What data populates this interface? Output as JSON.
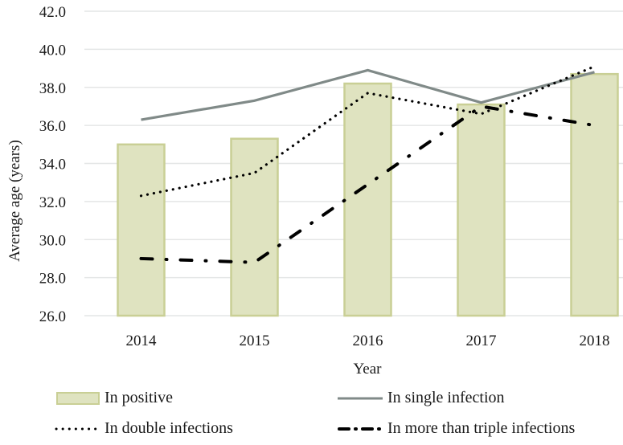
{
  "chart_data": {
    "type": "bar+line",
    "title": "",
    "xlabel": "Year",
    "ylabel": "Average age (years)",
    "categories": [
      "2014",
      "2015",
      "2016",
      "2017",
      "2018"
    ],
    "ylim": [
      26.0,
      42.0
    ],
    "yticks": [
      "26.0",
      "28.0",
      "30.0",
      "32.0",
      "34.0",
      "36.0",
      "38.0",
      "40.0",
      "42.0"
    ],
    "grid": true,
    "legend_position": "bottom",
    "series": [
      {
        "name": "In positive",
        "type": "bar",
        "values": [
          35.0,
          35.3,
          38.2,
          37.1,
          38.7
        ],
        "color": "#dfe3c0",
        "border": "#c9cf95"
      },
      {
        "name": "In single infection",
        "type": "line",
        "style": "solid",
        "values": [
          36.3,
          37.3,
          38.9,
          37.2,
          38.8
        ],
        "color": "#808a88"
      },
      {
        "name": "In double infections",
        "type": "line",
        "style": "dotted",
        "values": [
          32.3,
          33.5,
          37.7,
          36.6,
          39.1
        ],
        "color": "#000000"
      },
      {
        "name": "In more than triple infections",
        "type": "line",
        "style": "dash-dot",
        "values": [
          29.0,
          28.8,
          32.9,
          37.0,
          36.0
        ],
        "color": "#000000"
      }
    ]
  }
}
